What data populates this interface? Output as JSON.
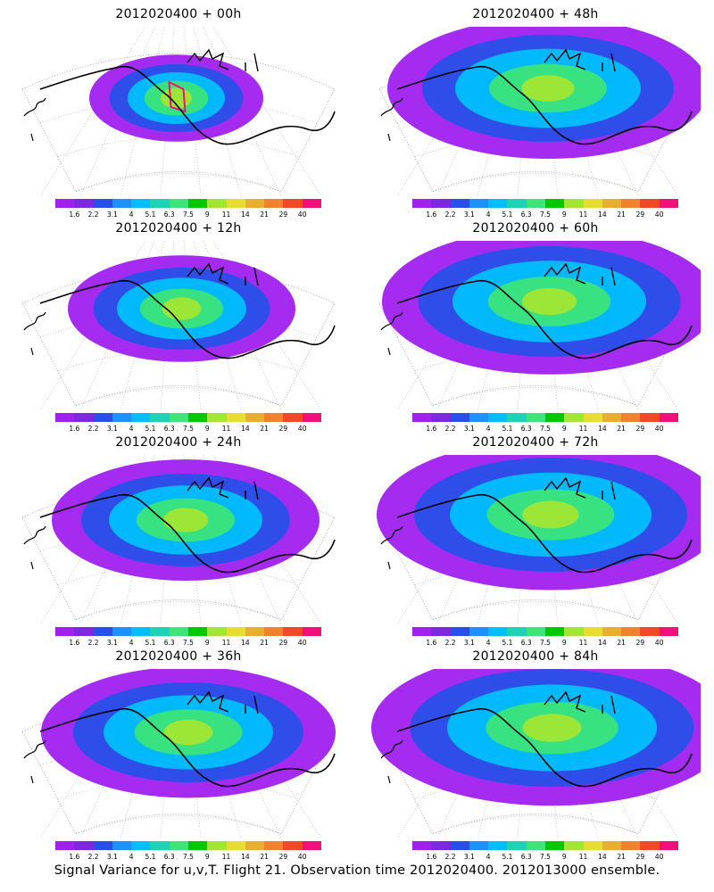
{
  "panels": [
    {
      "title": "2012020400  +  00h",
      "spread": 0.25,
      "intensity": 0.9
    },
    {
      "title": "2012020400  +  48h",
      "spread": 0.8,
      "intensity": 0.6
    },
    {
      "title": "2012020400  +  12h",
      "spread": 0.45,
      "intensity": 0.65
    },
    {
      "title": "2012020400  +  60h",
      "spread": 0.85,
      "intensity": 0.6
    },
    {
      "title": "2012020400  +  24h",
      "spread": 0.6,
      "intensity": 0.6
    },
    {
      "title": "2012020400  +  72h",
      "spread": 0.9,
      "intensity": 0.6
    },
    {
      "title": "2012020400  +  36h",
      "spread": 0.7,
      "intensity": 0.6
    },
    {
      "title": "2012020400  +  84h",
      "spread": 0.95,
      "intensity": 0.6
    }
  ],
  "colorbar": {
    "labels": [
      "1.6",
      "2.2",
      "3.1",
      "4",
      "5.1",
      "6.3",
      "7.5",
      "9",
      "11",
      "14",
      "21",
      "29",
      "40"
    ],
    "colors": [
      "#a020f0",
      "#7b28e0",
      "#2850e8",
      "#1e90ff",
      "#00bfff",
      "#20d2b4",
      "#3ce47a",
      "#00c800",
      "#a0e632",
      "#e6dc32",
      "#e6af2d",
      "#f0822d",
      "#f04828",
      "#f0127a"
    ]
  },
  "footer": "Signal Variance for u,v,T. Flight 21. Observation time 2012020400. 2012013000 ensemble."
}
